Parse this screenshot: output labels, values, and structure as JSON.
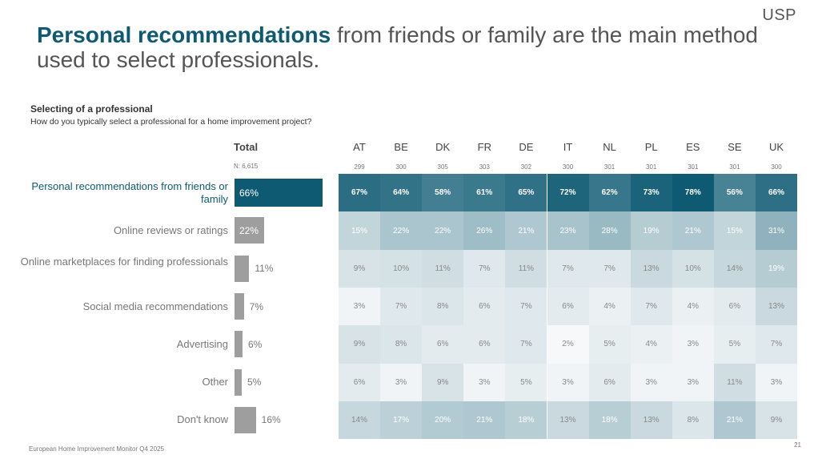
{
  "logo": "USP",
  "title": {
    "highlight": "Personal recommendations",
    "rest": " from friends or family are the main method used to select professionals."
  },
  "subtitle": "Selecting of a professional",
  "question": "How do you typically select a professional for a home improvement project?",
  "footer": "European Home Improvement Monitor Q4 2025",
  "page_number": "21",
  "colors": {
    "accent": "#0e5a73",
    "bar_gray": "#9e9e9e"
  },
  "chart_data": {
    "type": "heatmap",
    "total_label": "Total",
    "total_n": "N: 6,615",
    "categories": [
      "Personal recommendations from friends or family",
      "Online reviews or ratings",
      "Online marketplaces for finding professionals",
      "Social media recommendations",
      "Advertising",
      "Other",
      "Don't know"
    ],
    "total_values": [
      66,
      22,
      11,
      7,
      6,
      5,
      16
    ],
    "countries": [
      "AT",
      "BE",
      "DK",
      "FR",
      "DE",
      "IT",
      "NL",
      "PL",
      "ES",
      "SE",
      "UK"
    ],
    "country_n": [
      "299",
      "300",
      "305",
      "303",
      "302",
      "300",
      "301",
      "301",
      "301",
      "301",
      "300"
    ],
    "values": [
      [
        67,
        64,
        58,
        61,
        65,
        72,
        62,
        73,
        78,
        56,
        66
      ],
      [
        15,
        22,
        22,
        26,
        21,
        23,
        28,
        19,
        21,
        15,
        31
      ],
      [
        9,
        10,
        11,
        7,
        11,
        7,
        7,
        13,
        10,
        14,
        19
      ],
      [
        3,
        7,
        8,
        6,
        7,
        6,
        4,
        7,
        4,
        6,
        13
      ],
      [
        9,
        8,
        6,
        6,
        7,
        2,
        5,
        4,
        3,
        5,
        7
      ],
      [
        6,
        3,
        9,
        3,
        5,
        3,
        6,
        3,
        3,
        11,
        3
      ],
      [
        14,
        17,
        20,
        21,
        18,
        13,
        18,
        13,
        8,
        21,
        9
      ]
    ],
    "unit": "%"
  }
}
